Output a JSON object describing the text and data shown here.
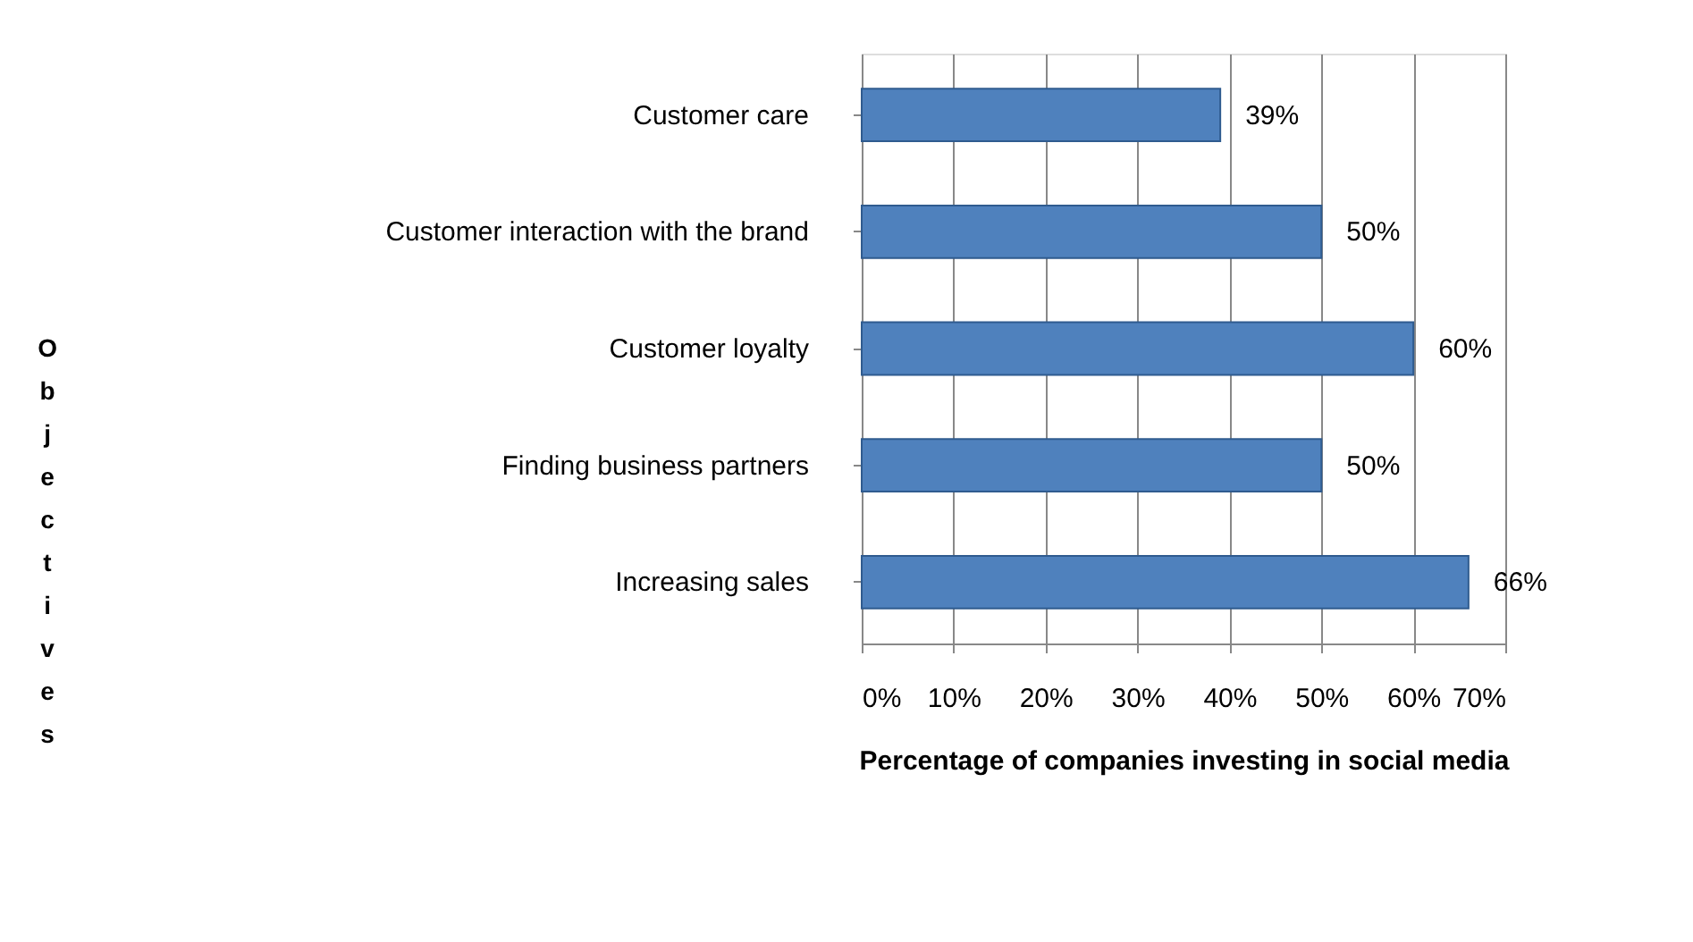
{
  "chart_data": {
    "type": "bar",
    "orientation": "horizontal",
    "categories": [
      "Customer care",
      "Customer interaction with the brand",
      "Customer loyalty",
      "Finding business partners",
      "Increasing sales"
    ],
    "values": [
      39,
      50,
      60,
      50,
      66
    ],
    "value_labels": [
      "39%",
      "50%",
      "60%",
      "50%",
      "66%"
    ],
    "color": "#4f81bd",
    "xlabel": "Percentage of companies investing in social media",
    "ylabel": "Objectives",
    "xlim": [
      0,
      70
    ],
    "xticks": [
      {
        "value": 0,
        "label": "0%"
      },
      {
        "value": 10,
        "label": "10%"
      },
      {
        "value": 20,
        "label": "20%"
      },
      {
        "value": 30,
        "label": "30%"
      },
      {
        "value": 40,
        "label": "40%"
      },
      {
        "value": 50,
        "label": "50%"
      },
      {
        "value": 60,
        "label": "60%"
      },
      {
        "value": 70,
        "label": "70%"
      }
    ],
    "grid": "x"
  }
}
